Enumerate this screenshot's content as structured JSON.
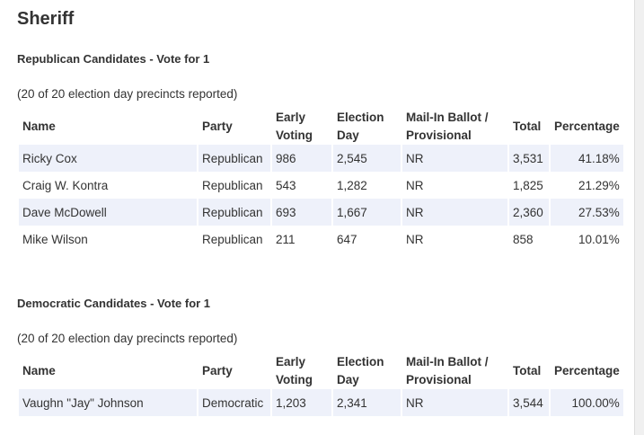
{
  "page_title": "Sheriff",
  "columns": {
    "name": "Name",
    "party": "Party",
    "early_voting": "Early Voting",
    "election_day": "Election Day",
    "mail_in": "Mail-In Ballot / Provisional",
    "total": "Total",
    "percentage": "Percentage"
  },
  "sections": [
    {
      "heading": "Republican Candidates - Vote for 1",
      "reported": "(20 of 20 election day precincts reported)",
      "rows": [
        {
          "name": "Ricky Cox",
          "party": "Republican",
          "early": "986",
          "eday": "2,545",
          "mail": "NR",
          "total": "3,531",
          "pct": "41.18%"
        },
        {
          "name": "Craig W. Kontra",
          "party": "Republican",
          "early": "543",
          "eday": "1,282",
          "mail": "NR",
          "total": "1,825",
          "pct": "21.29%"
        },
        {
          "name": "Dave McDowell",
          "party": "Republican",
          "early": "693",
          "eday": "1,667",
          "mail": "NR",
          "total": "2,360",
          "pct": "27.53%"
        },
        {
          "name": "Mike Wilson",
          "party": "Republican",
          "early": "211",
          "eday": "647",
          "mail": "NR",
          "total": "858",
          "pct": "10.01%"
        }
      ]
    },
    {
      "heading": "Democratic Candidates - Vote for 1",
      "reported": "(20 of 20 election day precincts reported)",
      "rows": [
        {
          "name": "Vaughn \"Jay\" Johnson",
          "party": "Democratic",
          "early": "1,203",
          "eday": "2,341",
          "mail": "NR",
          "total": "3,544",
          "pct": "100.00%"
        }
      ]
    }
  ]
}
